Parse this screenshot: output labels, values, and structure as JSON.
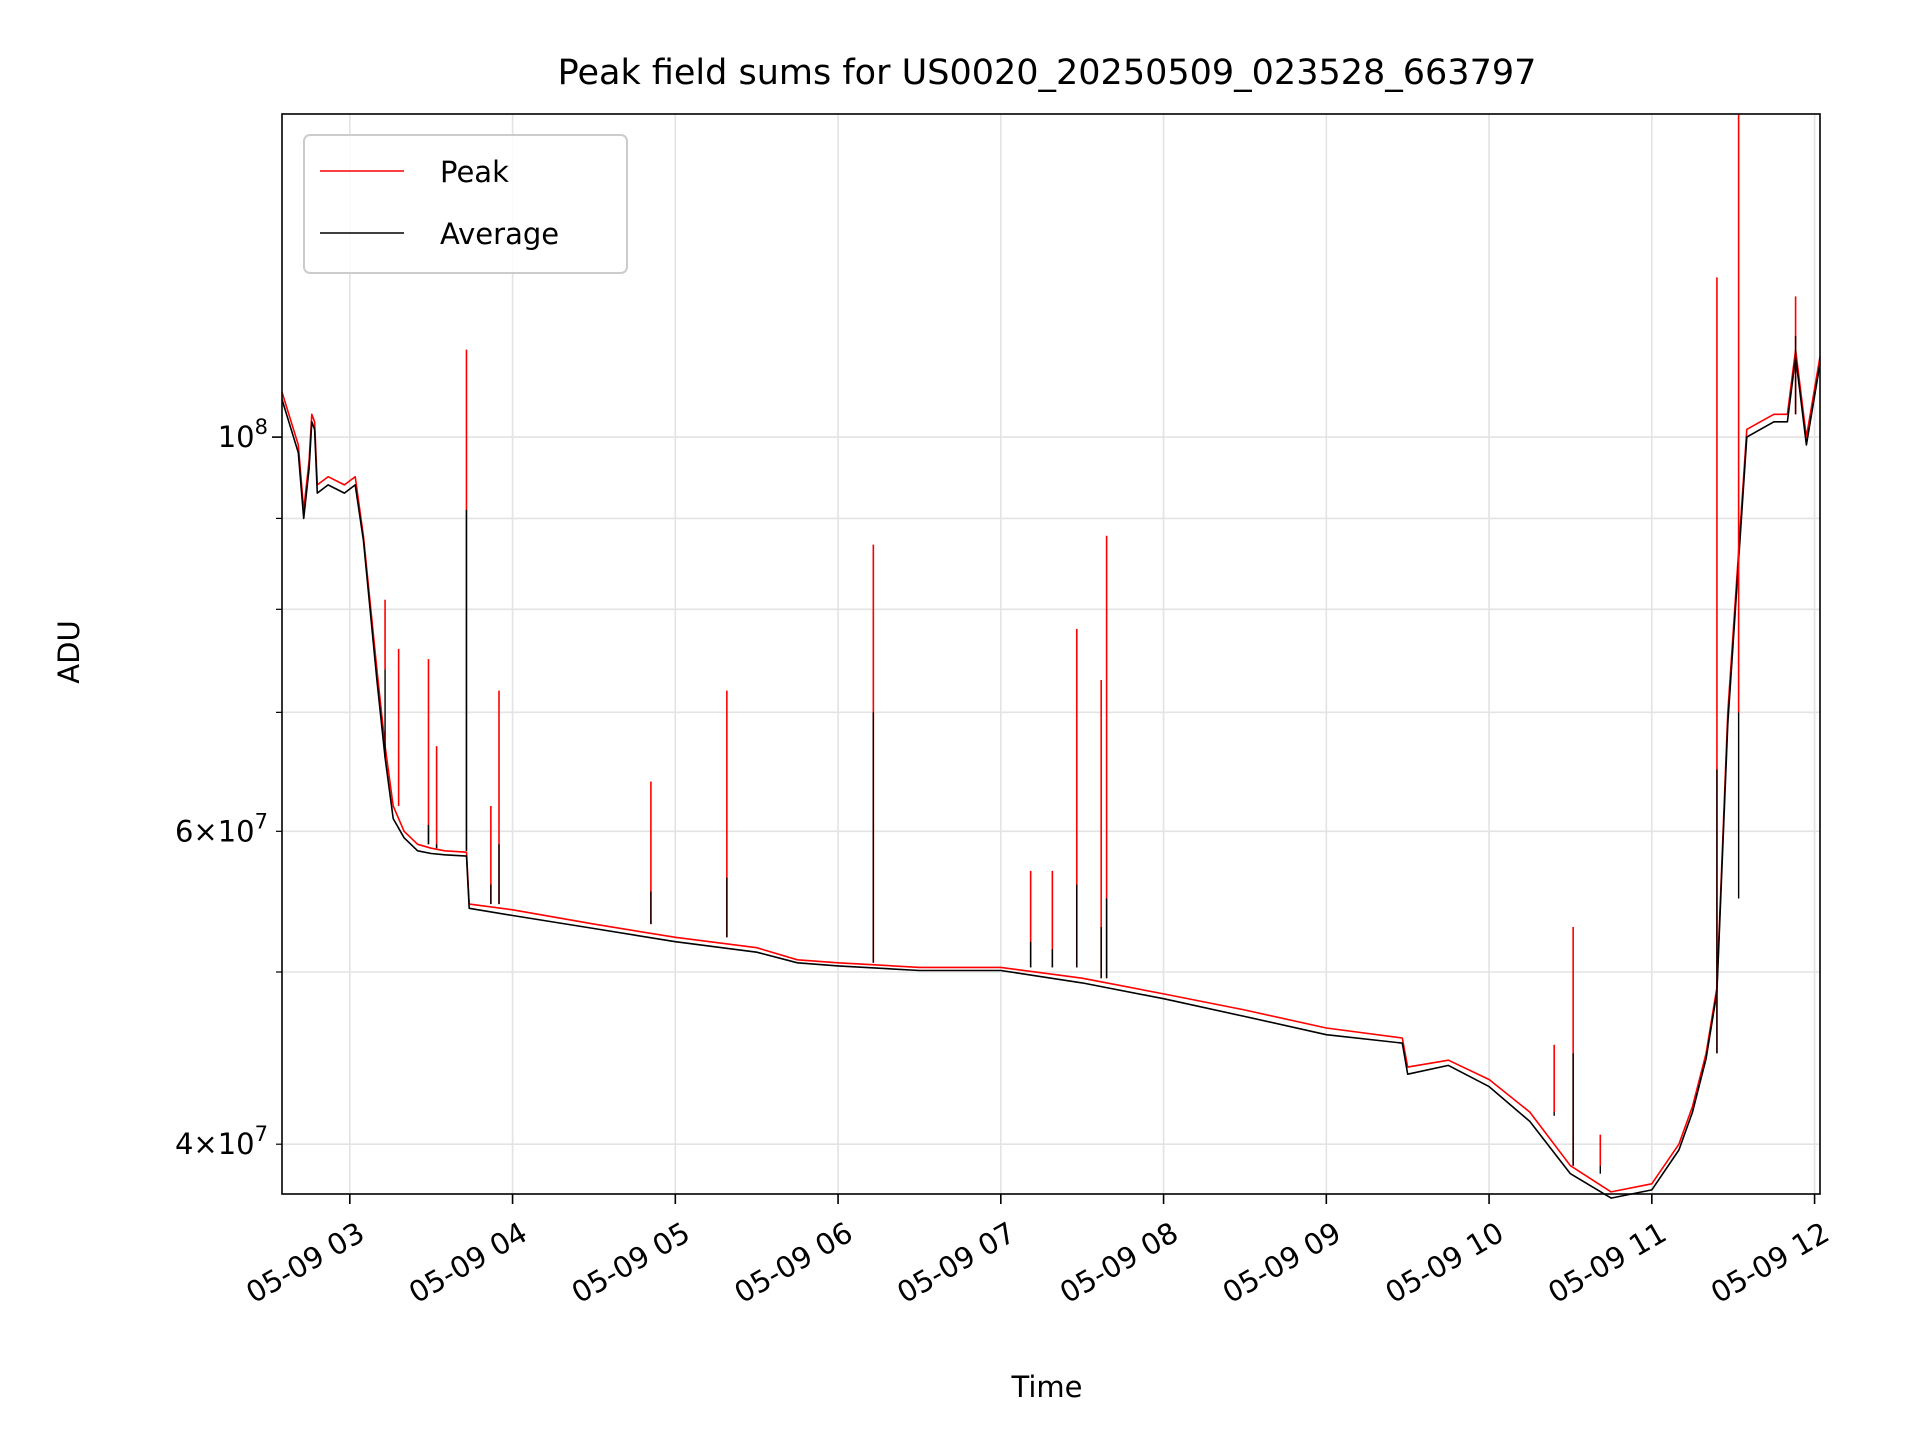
{
  "chart_data": {
    "type": "line",
    "title": "Peak field sums for US0020_20250509_023528_663797",
    "xlabel": "Time",
    "ylabel": "ADU",
    "yscale": "log",
    "grid": true,
    "legend_position": "top-left",
    "xlim": [
      "2025-05-09 02:35",
      "2025-05-09 12:02"
    ],
    "ylim": [
      37500000,
      152000000
    ],
    "x_ticks": [
      {
        "t": "2025-05-09 03:00",
        "label": "05-09 03"
      },
      {
        "t": "2025-05-09 04:00",
        "label": "05-09 04"
      },
      {
        "t": "2025-05-09 05:00",
        "label": "05-09 05"
      },
      {
        "t": "2025-05-09 06:00",
        "label": "05-09 06"
      },
      {
        "t": "2025-05-09 07:00",
        "label": "05-09 07"
      },
      {
        "t": "2025-05-09 08:00",
        "label": "05-09 08"
      },
      {
        "t": "2025-05-09 09:00",
        "label": "05-09 09"
      },
      {
        "t": "2025-05-09 10:00",
        "label": "05-09 10"
      },
      {
        "t": "2025-05-09 11:00",
        "label": "05-09 11"
      },
      {
        "t": "2025-05-09 12:00",
        "label": "05-09 12"
      }
    ],
    "y_ticks_major": [
      {
        "value": 100000000,
        "base": "10",
        "exp": "8"
      }
    ],
    "y_ticks_minor": [
      {
        "value": 40000000,
        "mant": "4",
        "base": "10",
        "exp": "7"
      },
      {
        "value": 60000000,
        "mant": "6",
        "base": "10",
        "exp": "7"
      }
    ],
    "y_ticks_minor_unlabeled": [
      50000000,
      70000000,
      80000000,
      90000000
    ],
    "series": [
      {
        "name": "Peak",
        "color": "#ff0000",
        "x": [
          "2025-05-09 02:35",
          "2025-05-09 02:41",
          "2025-05-09 02:43",
          "2025-05-09 02:45",
          "2025-05-09 02:46",
          "2025-05-09 02:47",
          "2025-05-09 02:48",
          "2025-05-09 02:52",
          "2025-05-09 02:58",
          "2025-05-09 03:02",
          "2025-05-09 03:05",
          "2025-05-09 03:10",
          "2025-05-09 03:13",
          "2025-05-09 03:16",
          "2025-05-09 03:20",
          "2025-05-09 03:25",
          "2025-05-09 03:30",
          "2025-05-09 03:35",
          "2025-05-09 03:43",
          "2025-05-09 03:44",
          "2025-05-09 04:00",
          "2025-05-09 04:30",
          "2025-05-09 05:00",
          "2025-05-09 05:30",
          "2025-05-09 05:45",
          "2025-05-09 06:00",
          "2025-05-09 06:30",
          "2025-05-09 07:00",
          "2025-05-09 07:30",
          "2025-05-09 08:00",
          "2025-05-09 08:30",
          "2025-05-09 09:00",
          "2025-05-09 09:28",
          "2025-05-09 09:30",
          "2025-05-09 09:45",
          "2025-05-09 10:00",
          "2025-05-09 10:15",
          "2025-05-09 10:30",
          "2025-05-09 10:45",
          "2025-05-09 11:00",
          "2025-05-09 11:10",
          "2025-05-09 11:15",
          "2025-05-09 11:20",
          "2025-05-09 11:24",
          "2025-05-09 11:28",
          "2025-05-09 11:35",
          "2025-05-09 11:40",
          "2025-05-09 11:45",
          "2025-05-09 11:50",
          "2025-05-09 11:53",
          "2025-05-09 11:57",
          "2025-05-09 12:02"
        ],
        "y": [
          106000000,
          99000000,
          91000000,
          97000000,
          103000000,
          102000000,
          94000000,
          95000000,
          94000000,
          95000000,
          88000000,
          74000000,
          67000000,
          62000000,
          60000000,
          59000000,
          58700000,
          58500000,
          58400000,
          54600000,
          54200000,
          53200000,
          52300000,
          51600000,
          50800000,
          50600000,
          50300000,
          50300000,
          49600000,
          48600000,
          47600000,
          46500000,
          45900000,
          44200000,
          44600000,
          43500000,
          41700000,
          38900000,
          37600000,
          38000000,
          40000000,
          42000000,
          45000000,
          49000000,
          70000000,
          101000000,
          102000000,
          103000000,
          103000000,
          112000000,
          100000000,
          111000000
        ]
      },
      {
        "name": "Average",
        "color": "#000000",
        "x": [
          "2025-05-09 02:35",
          "2025-05-09 02:41",
          "2025-05-09 02:43",
          "2025-05-09 02:45",
          "2025-05-09 02:46",
          "2025-05-09 02:47",
          "2025-05-09 02:48",
          "2025-05-09 02:52",
          "2025-05-09 02:58",
          "2025-05-09 03:02",
          "2025-05-09 03:05",
          "2025-05-09 03:10",
          "2025-05-09 03:13",
          "2025-05-09 03:16",
          "2025-05-09 03:20",
          "2025-05-09 03:25",
          "2025-05-09 03:30",
          "2025-05-09 03:35",
          "2025-05-09 03:43",
          "2025-05-09 03:44",
          "2025-05-09 04:00",
          "2025-05-09 04:30",
          "2025-05-09 05:00",
          "2025-05-09 05:30",
          "2025-05-09 05:45",
          "2025-05-09 06:00",
          "2025-05-09 06:30",
          "2025-05-09 07:00",
          "2025-05-09 07:30",
          "2025-05-09 08:00",
          "2025-05-09 08:30",
          "2025-05-09 09:00",
          "2025-05-09 09:28",
          "2025-05-09 09:30",
          "2025-05-09 09:45",
          "2025-05-09 10:00",
          "2025-05-09 10:15",
          "2025-05-09 10:30",
          "2025-05-09 10:45",
          "2025-05-09 11:00",
          "2025-05-09 11:10",
          "2025-05-09 11:15",
          "2025-05-09 11:20",
          "2025-05-09 11:24",
          "2025-05-09 11:28",
          "2025-05-09 11:35",
          "2025-05-09 11:40",
          "2025-05-09 11:45",
          "2025-05-09 11:50",
          "2025-05-09 11:53",
          "2025-05-09 11:57",
          "2025-05-09 12:02"
        ],
        "y": [
          105000000,
          98000000,
          90000000,
          96000000,
          102000000,
          101000000,
          93000000,
          94000000,
          93000000,
          94000000,
          87500000,
          73000000,
          66000000,
          61000000,
          59500000,
          58500000,
          58300000,
          58200000,
          58100000,
          54300000,
          53800000,
          52900000,
          52000000,
          51300000,
          50600000,
          50400000,
          50100000,
          50100000,
          49300000,
          48300000,
          47200000,
          46100000,
          45600000,
          43800000,
          44300000,
          43100000,
          41200000,
          38500000,
          37300000,
          37700000,
          39700000,
          41700000,
          44700000,
          48700000,
          69000000,
          100000000,
          101000000,
          102000000,
          102000000,
          111000000,
          99000000,
          110000000
        ]
      }
    ],
    "spikes": [
      {
        "t": "2025-05-09 03:13",
        "peak": 81000000,
        "average": 66000000
      },
      {
        "t": "2025-05-09 03:18",
        "peak": 76000000,
        "average": 62000000
      },
      {
        "t": "2025-05-09 03:29",
        "peak": 75000000,
        "average": 60500000
      },
      {
        "t": "2025-05-09 03:32",
        "peak": 67000000,
        "average": 59000000
      },
      {
        "t": "2025-05-09 03:43",
        "peak": 112000000,
        "average": 91000000
      },
      {
        "t": "2025-05-09 03:52",
        "peak": 62000000,
        "average": 56000000
      },
      {
        "t": "2025-05-09 03:55",
        "peak": 72000000,
        "average": 59000000
      },
      {
        "t": "2025-05-09 04:51",
        "peak": 64000000,
        "average": 55500000
      },
      {
        "t": "2025-05-09 05:19",
        "peak": 72000000,
        "average": 56500000
      },
      {
        "t": "2025-05-09 06:13",
        "peak": 87000000,
        "average": 70000000
      },
      {
        "t": "2025-05-09 07:11",
        "peak": 57000000,
        "average": 52000000
      },
      {
        "t": "2025-05-09 07:19",
        "peak": 57000000,
        "average": 51500000
      },
      {
        "t": "2025-05-09 07:28",
        "peak": 78000000,
        "average": 56000000
      },
      {
        "t": "2025-05-09 07:37",
        "peak": 73000000,
        "average": 53000000
      },
      {
        "t": "2025-05-09 07:39",
        "peak": 88000000,
        "average": 55000000
      },
      {
        "t": "2025-05-09 10:24",
        "peak": 45500000,
        "average": 41500000
      },
      {
        "t": "2025-05-09 10:31",
        "peak": 53000000,
        "average": 45000000
      },
      {
        "t": "2025-05-09 10:41",
        "peak": 40500000,
        "average": 38500000
      },
      {
        "t": "2025-05-09 11:24",
        "peak": 123000000,
        "average": 65000000
      },
      {
        "t": "2025-05-09 11:32",
        "peak": 152000000,
        "average": 55000000
      },
      {
        "t": "2025-05-09 11:53",
        "peak": 120000000,
        "average": 114000000
      }
    ]
  }
}
